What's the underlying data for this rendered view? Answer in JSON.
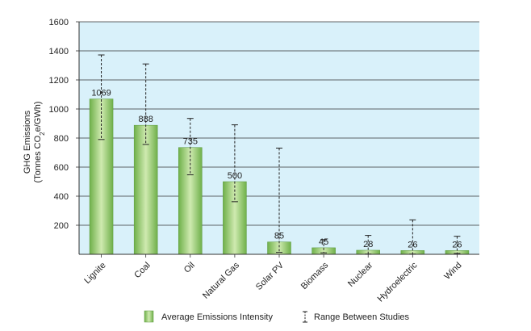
{
  "chart_data": {
    "type": "bar",
    "title": "",
    "xlabel": "",
    "ylabel_line1": "GHG Emissions",
    "ylabel_line2_prefix": "(Tonnes CO",
    "ylabel_line2_sub": "2",
    "ylabel_line2_e": "e",
    "ylabel_line2_suffix": "/GWh)",
    "ylim": [
      0,
      1600
    ],
    "yticks": [
      200,
      400,
      600,
      800,
      1000,
      1200,
      1400,
      1600
    ],
    "grid": true,
    "categories": [
      "Lignite",
      "Coal",
      "Oil",
      "Natural Gas",
      "Solar PV",
      "Biomass",
      "Nuclear",
      "Hydroelectric",
      "Wind"
    ],
    "values": [
      1069,
      888,
      735,
      500,
      85,
      45,
      28,
      26,
      26
    ],
    "value_labels": [
      "1069",
      "888",
      "735",
      "500",
      "85",
      "45",
      "28",
      "26",
      "26"
    ],
    "range_low": [
      790,
      756,
      547,
      362,
      13,
      10,
      2,
      2,
      6
    ],
    "range_high": [
      1372,
      1310,
      935,
      891,
      731,
      101,
      130,
      237,
      124
    ],
    "legend": {
      "placement": "bottom",
      "bar_label": "Average Emissions Intensity",
      "range_label": "Range Between Studies"
    },
    "colors": {
      "plot_bg": "#d9f1fa",
      "bar_dark": "#6fb04a",
      "bar_light": "#c9e6a8",
      "axis": "#333333",
      "grid": "#333333"
    }
  }
}
